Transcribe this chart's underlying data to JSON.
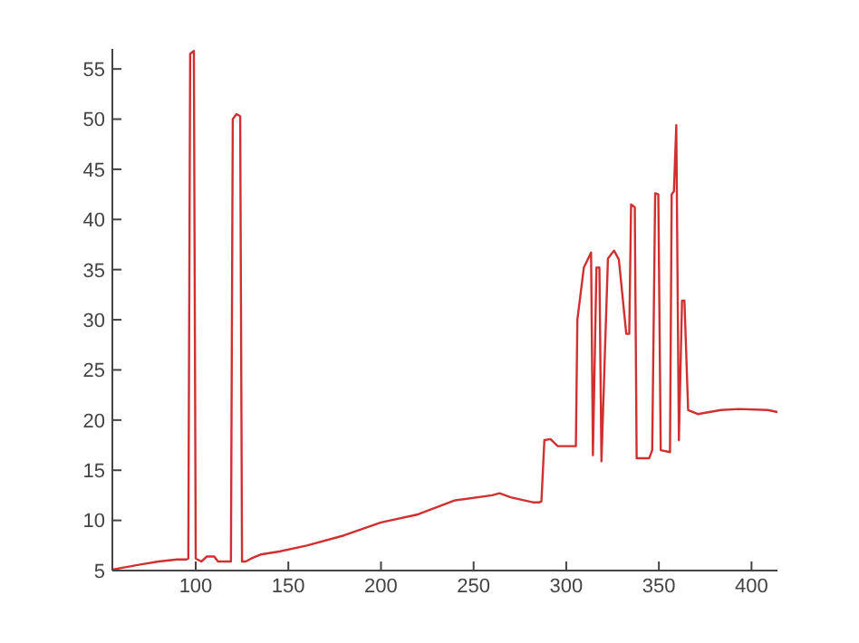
{
  "chart_data": {
    "type": "line",
    "x": [
      55,
      70,
      80,
      90,
      95,
      96,
      97,
      99,
      100,
      103,
      106,
      110,
      112,
      119,
      120,
      122,
      124,
      125,
      127,
      130,
      135,
      145,
      160,
      180,
      200,
      220,
      240,
      260,
      264,
      270,
      282,
      285.5,
      286.6,
      288.2,
      291.5,
      295.4,
      305.2,
      306,
      309.5,
      313.4,
      314.4,
      316.3,
      317.9,
      319,
      322.5,
      325.8,
      328.4,
      332.4,
      334,
      335,
      337,
      338,
      344.8,
      346.4,
      348,
      349.7,
      351,
      356,
      356.9,
      358.1,
      359.4,
      360.8,
      362.5,
      363.8,
      365.8,
      371,
      383.5,
      393.3,
      408.8,
      414
    ],
    "series": [
      {
        "color": "#d03030",
        "values": [
          5.1,
          5.6,
          5.9,
          6.1,
          6.1,
          6.2,
          56.5,
          56.8,
          6.2,
          5.9,
          6.4,
          6.4,
          5.9,
          5.9,
          50,
          50.5,
          50.3,
          5.9,
          5.9,
          6.2,
          6.6,
          6.9,
          7.5,
          8.5,
          9.8,
          10.6,
          12,
          12.5,
          12.7,
          12.3,
          11.8,
          11.8,
          11.9,
          18,
          18.1,
          17.4,
          17.4,
          30,
          35.2,
          36.7,
          16.5,
          35.2,
          35.2,
          15.9,
          36.1,
          36.9,
          36,
          28.6,
          28.6,
          41.5,
          41.2,
          16.2,
          16.2,
          17,
          42.6,
          42.5,
          17,
          16.8,
          42.5,
          42.8,
          49.4,
          18,
          31.9,
          31.9,
          21,
          20.6,
          21,
          21.1,
          21,
          20.8
        ]
      }
    ],
    "xlim": [
      55,
      414
    ],
    "xticks": [
      100,
      150,
      200,
      250,
      300,
      350,
      400
    ],
    "ylim": [
      5,
      57
    ],
    "yticks": [
      5,
      10,
      15,
      20,
      25,
      30,
      35,
      40,
      45,
      50,
      55
    ],
    "grid": false,
    "legend": false,
    "marker": "none",
    "line_style": "solid"
  }
}
